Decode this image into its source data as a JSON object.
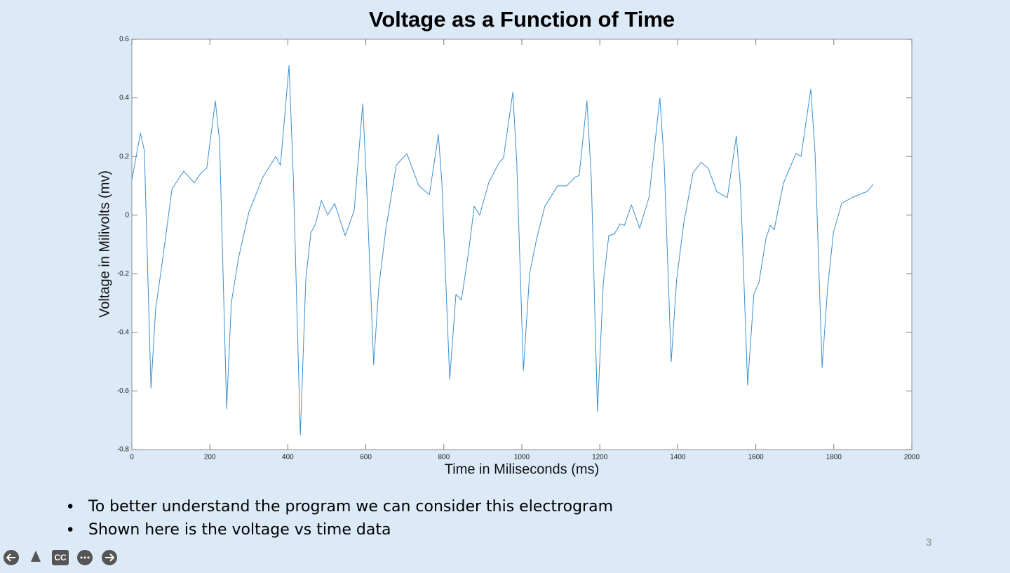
{
  "chart_data": {
    "type": "line",
    "title": "Voltage as a Function of Time",
    "x_label": "Time in Miliseconds (ms)",
    "y_label": "Voltage in Milivolts (mv)",
    "x": [
      0,
      22,
      32,
      49,
      61,
      76,
      103,
      133,
      160,
      178,
      192,
      214,
      225,
      243,
      255,
      273,
      300,
      336,
      369,
      381,
      403,
      414,
      432,
      446,
      459,
      471,
      486,
      502,
      520,
      547,
      570,
      592,
      601,
      620,
      633,
      651,
      678,
      705,
      736,
      763,
      786,
      795,
      815,
      831,
      845,
      863,
      878,
      892,
      915,
      942,
      953,
      977,
      987,
      1004,
      1020,
      1038,
      1059,
      1092,
      1115,
      1137,
      1147,
      1167,
      1178,
      1194,
      1209,
      1223,
      1237,
      1252,
      1263,
      1281,
      1302,
      1326,
      1354,
      1365,
      1383,
      1397,
      1415,
      1439,
      1460,
      1478,
      1500,
      1527,
      1550,
      1561,
      1579,
      1595,
      1608,
      1626,
      1637,
      1647,
      1671,
      1703,
      1716,
      1741,
      1752,
      1770,
      1784,
      1799,
      1820,
      1847,
      1874,
      1885,
      1901
    ],
    "series": [
      {
        "name": "Voltage",
        "color": "#3a8fd1",
        "values": [
          0.12,
          0.28,
          0.22,
          -0.59,
          -0.32,
          -0.18,
          0.09,
          0.15,
          0.11,
          0.145,
          0.16,
          0.39,
          0.25,
          -0.66,
          -0.3,
          -0.15,
          0.01,
          0.13,
          0.2,
          0.17,
          0.51,
          0.13,
          -0.75,
          -0.22,
          -0.06,
          -0.03,
          0.05,
          0.0,
          0.04,
          -0.07,
          0.015,
          0.38,
          0.13,
          -0.51,
          -0.25,
          -0.05,
          0.17,
          0.21,
          0.1,
          0.07,
          0.275,
          0.11,
          -0.56,
          -0.27,
          -0.29,
          -0.13,
          0.03,
          0.0,
          0.11,
          0.18,
          0.195,
          0.42,
          0.18,
          -0.53,
          -0.2,
          -0.08,
          0.03,
          0.1,
          0.1,
          0.13,
          0.135,
          0.39,
          0.13,
          -0.67,
          -0.23,
          -0.07,
          -0.065,
          -0.03,
          -0.035,
          0.035,
          -0.045,
          0.06,
          0.4,
          0.18,
          -0.5,
          -0.22,
          -0.03,
          0.145,
          0.18,
          0.16,
          0.08,
          0.06,
          0.27,
          0.09,
          -0.58,
          -0.27,
          -0.23,
          -0.08,
          -0.035,
          -0.05,
          0.11,
          0.21,
          0.2,
          0.43,
          0.21,
          -0.52,
          -0.25,
          -0.06,
          0.04,
          0.06,
          0.075,
          0.08,
          0.105
        ]
      }
    ],
    "xlim": [
      0,
      2000
    ],
    "xticks": [
      0,
      200,
      400,
      600,
      800,
      1000,
      1200,
      1400,
      1600,
      1800,
      2000
    ],
    "ylim": [
      -0.8,
      0.6
    ],
    "yticks": [
      -0.8,
      -0.6,
      -0.4,
      -0.2,
      0,
      0.2,
      0.4,
      0.6
    ],
    "grid": false
  },
  "bullets": [
    "To better understand the program we can consider this electrogram",
    "Shown here is the voltage vs time data"
  ],
  "slide_number": "3",
  "controls": {
    "captions": "CC"
  }
}
